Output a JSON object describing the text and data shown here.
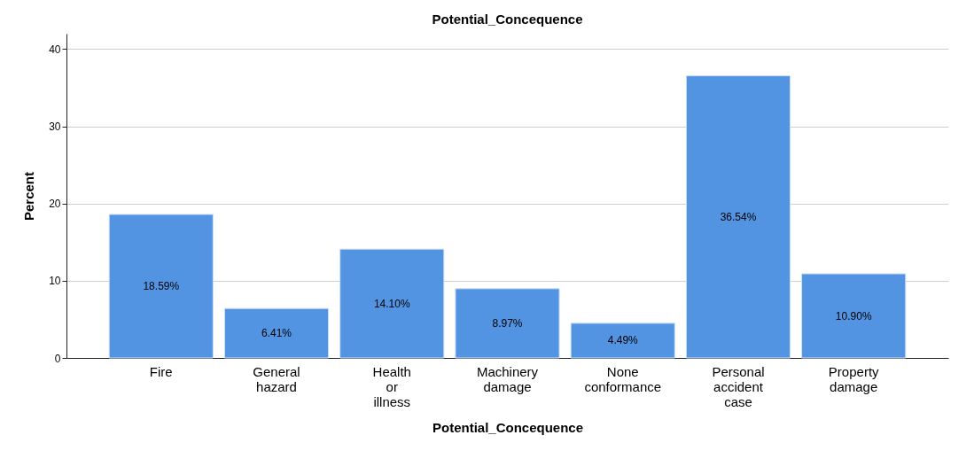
{
  "chart_data": {
    "type": "bar",
    "title": "Potential_Concequence",
    "xlabel": "Potential_Concequence",
    "ylabel": "Percent",
    "categories": [
      "Fire",
      "General hazard",
      "Health or illness",
      "Machinery damage",
      "None conformance",
      "Personal accident case",
      "Property damage"
    ],
    "values": [
      18.59,
      6.41,
      14.1,
      8.97,
      4.49,
      36.54,
      10.9
    ],
    "value_labels": [
      "18.59%",
      "6.41%",
      "14.10%",
      "8.97%",
      "4.49%",
      "36.54%",
      "10.90%"
    ],
    "color": "#5294e2",
    "ylim": [
      0,
      42
    ],
    "yticks": [
      0,
      10,
      20,
      30,
      40
    ],
    "grid": "y"
  }
}
